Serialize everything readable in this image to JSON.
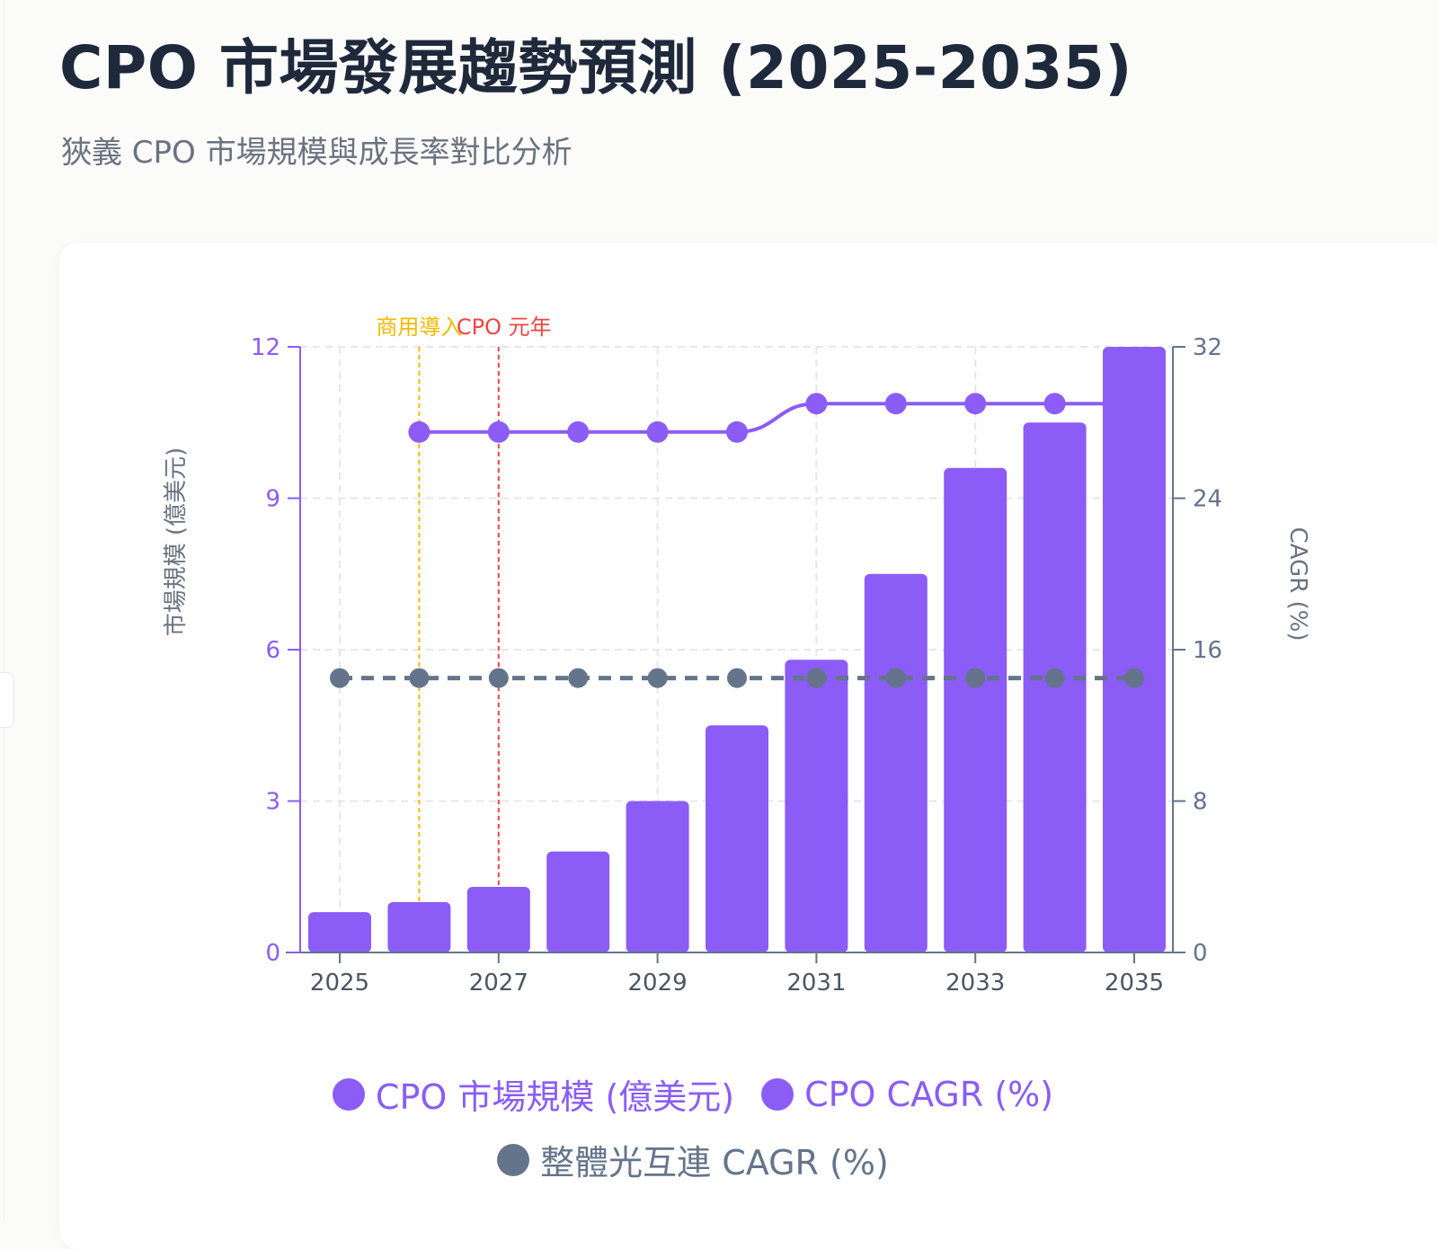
{
  "header": {
    "title": "CPO 市場發展趨勢預測 (2025-2035)",
    "subtitle": "狹義 CPO 市場規模與成長率對比分析"
  },
  "colors": {
    "bar": "#8b5cf6",
    "line": "#8b5cf6",
    "overall": "#64748b",
    "annotation_commercial": "#f5b800",
    "annotation_year_one": "#ef4444",
    "grid": "#e5e7eb",
    "axis_right": "#64748b"
  },
  "chart_data": {
    "type": "bar",
    "x": [
      2025,
      2026,
      2027,
      2028,
      2029,
      2030,
      2031,
      2032,
      2033,
      2034,
      2035
    ],
    "x_tick_labels": [
      "2025",
      "2027",
      "2029",
      "2031",
      "2033",
      "2035"
    ],
    "y_left": {
      "label": "市場規模 (億美元)",
      "range": [
        0,
        12
      ],
      "ticks": [
        "0",
        "3",
        "6",
        "9",
        "12"
      ]
    },
    "y_right": {
      "label": "CAGR (%)",
      "range": [
        0,
        32
      ],
      "ticks": [
        "0",
        "8",
        "16",
        "24",
        "32"
      ]
    },
    "grid": true,
    "legend_position": "bottom",
    "series": [
      {
        "name": "CPO 市場規模 (億美元)",
        "type": "bar",
        "axis": "left",
        "values": [
          0.8,
          1.0,
          1.3,
          2.0,
          3.0,
          4.5,
          5.8,
          7.5,
          9.6,
          10.5,
          12.0
        ]
      },
      {
        "name": "CPO CAGR (%)",
        "type": "line",
        "axis": "right",
        "values": [
          null,
          27.5,
          27.5,
          27.5,
          27.5,
          27.5,
          29,
          29,
          29,
          29,
          29
        ]
      },
      {
        "name": "整體光互連 CAGR (%)",
        "type": "line",
        "style": "dashed",
        "axis": "right",
        "values": [
          14.5,
          14.5,
          14.5,
          14.5,
          14.5,
          14.5,
          14.5,
          14.5,
          14.5,
          14.5,
          14.5
        ]
      }
    ],
    "annotations": [
      {
        "x": 2026,
        "label": "商用導入",
        "color": "#f5b800"
      },
      {
        "x": 2027,
        "label": "CPO 元年",
        "color": "#ef4444"
      }
    ]
  }
}
